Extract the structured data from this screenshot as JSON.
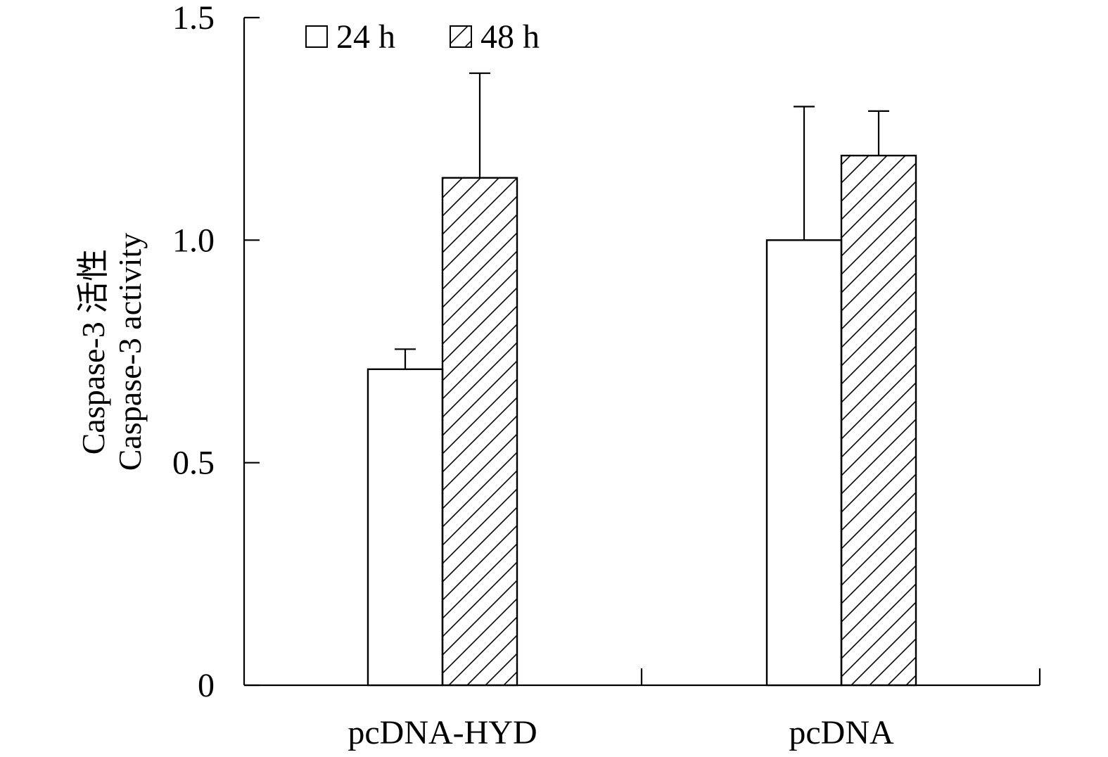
{
  "chart_data": {
    "type": "bar",
    "categories": [
      "pcDNA-HYD",
      "pcDNA"
    ],
    "series": [
      {
        "name": "24 h",
        "values": [
          0.71,
          1.0
        ],
        "errors": [
          0.045,
          0.3
        ],
        "fill": "none"
      },
      {
        "name": "48 h",
        "values": [
          1.14,
          1.19
        ],
        "errors": [
          0.235,
          0.1
        ],
        "fill": "hatched"
      }
    ],
    "ylabel_lines": [
      "Caspase-3 活性",
      "Caspase-3 activity"
    ],
    "xlabel": "",
    "ylim": [
      0,
      1.5
    ],
    "yticks": [
      0,
      0.5,
      1.0,
      1.5
    ],
    "ytick_labels": [
      "0",
      "0.5",
      "1.0",
      "1.5"
    ],
    "legend_position": "top-left",
    "grid": false,
    "colors": {
      "stroke": "#000000",
      "background": "#ffffff"
    }
  }
}
